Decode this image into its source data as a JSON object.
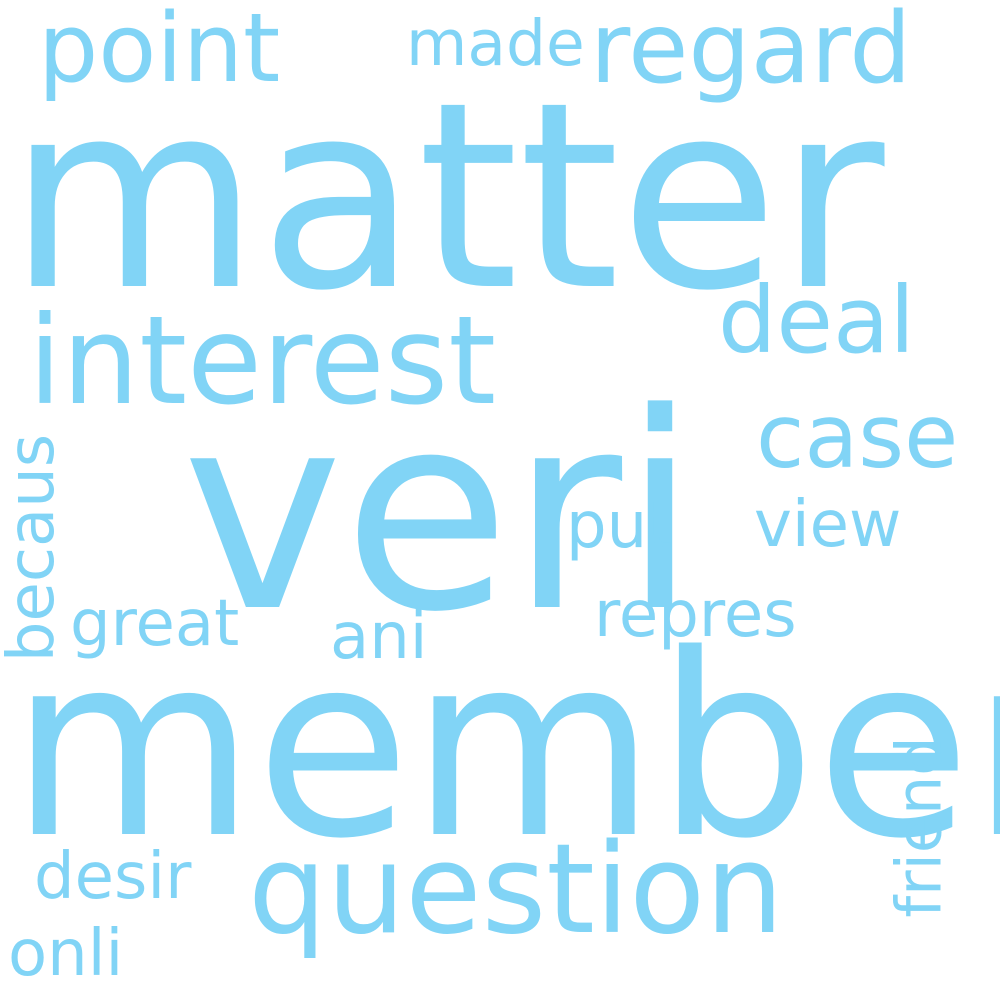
{
  "word_cloud": {
    "color": "#81d4f6",
    "background": "#ffffff",
    "words": [
      {
        "text": "matter"
      },
      {
        "text": "veri"
      },
      {
        "text": "member"
      },
      {
        "text": "interest"
      },
      {
        "text": "question"
      },
      {
        "text": "point"
      },
      {
        "text": "regard"
      },
      {
        "text": "made"
      },
      {
        "text": "deal"
      },
      {
        "text": "case"
      },
      {
        "text": "put"
      },
      {
        "text": "view"
      },
      {
        "text": "becaus"
      },
      {
        "text": "great"
      },
      {
        "text": "ani"
      },
      {
        "text": "repres"
      },
      {
        "text": "friend"
      },
      {
        "text": "desir"
      },
      {
        "text": "onli"
      }
    ]
  }
}
